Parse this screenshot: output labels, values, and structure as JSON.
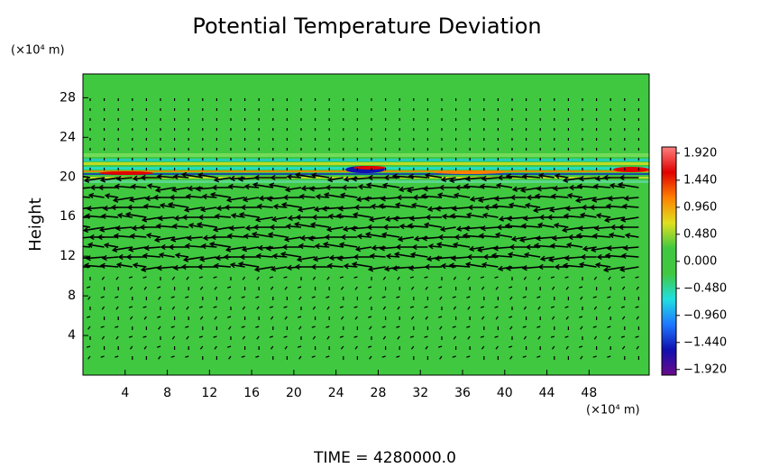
{
  "chart_data": {
    "type": "heatmap",
    "title": "Potential Temperature Deviation",
    "y_unit": "(×10⁴ m)",
    "x_unit": "(×10⁴ m)",
    "ylabel": "Height",
    "footer": "TIME = 4280000.0",
    "xlim": [
      0,
      53.7
    ],
    "xticks": [
      4,
      8,
      12,
      16,
      20,
      24,
      28,
      32,
      36,
      40,
      44,
      48
    ],
    "ylim": [
      0,
      30.4
    ],
    "yticks": [
      4,
      8,
      12,
      16,
      20,
      24,
      28
    ],
    "clim": [
      -2.02,
      2.03
    ],
    "cticks": [
      {
        "value": 1.92,
        "label": "1.920"
      },
      {
        "value": 1.44,
        "label": "1.440"
      },
      {
        "value": 0.96,
        "label": "0.960"
      },
      {
        "value": 0.48,
        "label": "0.480"
      },
      {
        "value": 0,
        "label": "0.000"
      },
      {
        "value": -0.48,
        "label": "−0.480"
      },
      {
        "value": -0.96,
        "label": "−0.960"
      },
      {
        "value": -1.44,
        "label": "−1.440"
      },
      {
        "value": -1.92,
        "label": "−1.920"
      }
    ],
    "colormap": [
      "#6a0a8a",
      "#1010b0",
      "#1e78ff",
      "#20e0e0",
      "#40c840",
      "#40c840",
      "#e0e020",
      "#ff8000",
      "#e00000",
      "#ff8080"
    ]
  }
}
